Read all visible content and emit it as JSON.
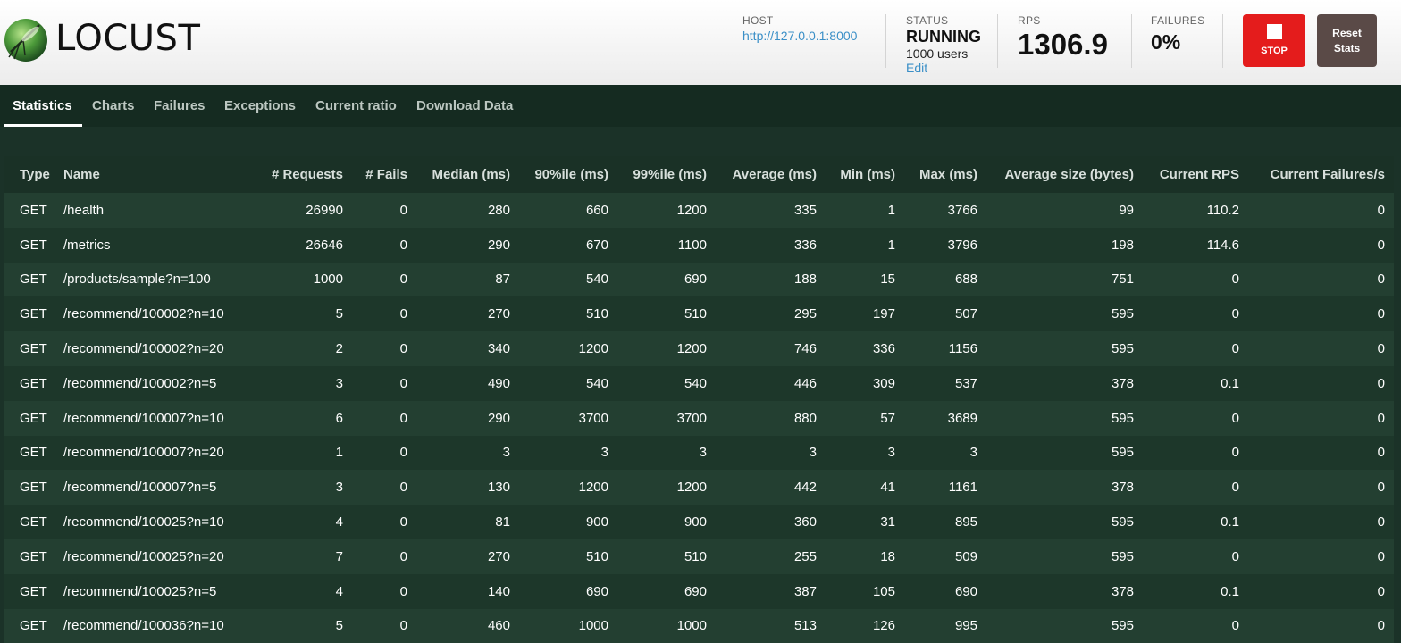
{
  "app": {
    "logo_text": "LOCUST"
  },
  "header": {
    "host_label": "HOST",
    "host_value": "http://127.0.0.1:8000",
    "status_label": "STATUS",
    "status_value": "RUNNING",
    "users_text": "1000 users",
    "edit_label": "Edit",
    "rps_label": "RPS",
    "rps_value": "1306.9",
    "failures_label": "FAILURES",
    "failures_value": "0%",
    "stop_label": "STOP",
    "reset_label_line1": "Reset",
    "reset_label_line2": "Stats"
  },
  "tabs": [
    {
      "label": "Statistics",
      "active": true
    },
    {
      "label": "Charts"
    },
    {
      "label": "Failures"
    },
    {
      "label": "Exceptions"
    },
    {
      "label": "Current ratio"
    },
    {
      "label": "Download Data"
    }
  ],
  "table": {
    "columns": [
      "Type",
      "Name",
      "# Requests",
      "# Fails",
      "Median (ms)",
      "90%ile (ms)",
      "99%ile (ms)",
      "Average (ms)",
      "Min (ms)",
      "Max (ms)",
      "Average size (bytes)",
      "Current RPS",
      "Current Failures/s"
    ],
    "rows": [
      [
        "GET",
        "/health",
        "26990",
        "0",
        "280",
        "660",
        "1200",
        "335",
        "1",
        "3766",
        "99",
        "110.2",
        "0"
      ],
      [
        "GET",
        "/metrics",
        "26646",
        "0",
        "290",
        "670",
        "1100",
        "336",
        "1",
        "3796",
        "198",
        "114.6",
        "0"
      ],
      [
        "GET",
        "/products/sample?n=100",
        "1000",
        "0",
        "87",
        "540",
        "690",
        "188",
        "15",
        "688",
        "751",
        "0",
        "0"
      ],
      [
        "GET",
        "/recommend/100002?n=10",
        "5",
        "0",
        "270",
        "510",
        "510",
        "295",
        "197",
        "507",
        "595",
        "0",
        "0"
      ],
      [
        "GET",
        "/recommend/100002?n=20",
        "2",
        "0",
        "340",
        "1200",
        "1200",
        "746",
        "336",
        "1156",
        "595",
        "0",
        "0"
      ],
      [
        "GET",
        "/recommend/100002?n=5",
        "3",
        "0",
        "490",
        "540",
        "540",
        "446",
        "309",
        "537",
        "378",
        "0.1",
        "0"
      ],
      [
        "GET",
        "/recommend/100007?n=10",
        "6",
        "0",
        "290",
        "3700",
        "3700",
        "880",
        "57",
        "3689",
        "595",
        "0",
        "0"
      ],
      [
        "GET",
        "/recommend/100007?n=20",
        "1",
        "0",
        "3",
        "3",
        "3",
        "3",
        "3",
        "3",
        "595",
        "0",
        "0"
      ],
      [
        "GET",
        "/recommend/100007?n=5",
        "3",
        "0",
        "130",
        "1200",
        "1200",
        "442",
        "41",
        "1161",
        "378",
        "0",
        "0"
      ],
      [
        "GET",
        "/recommend/100025?n=10",
        "4",
        "0",
        "81",
        "900",
        "900",
        "360",
        "31",
        "895",
        "595",
        "0.1",
        "0"
      ],
      [
        "GET",
        "/recommend/100025?n=20",
        "7",
        "0",
        "270",
        "510",
        "510",
        "255",
        "18",
        "509",
        "595",
        "0",
        "0"
      ],
      [
        "GET",
        "/recommend/100025?n=5",
        "4",
        "0",
        "140",
        "690",
        "690",
        "387",
        "105",
        "690",
        "378",
        "0.1",
        "0"
      ],
      [
        "GET",
        "/recommend/100036?n=10",
        "5",
        "0",
        "460",
        "1000",
        "1000",
        "513",
        "126",
        "995",
        "595",
        "0",
        "0"
      ]
    ]
  },
  "colors": {
    "stop_button": "#e41c1c",
    "reset_button": "#5a4a47",
    "link": "#3a8fc7",
    "page_background": "#1b3228"
  }
}
